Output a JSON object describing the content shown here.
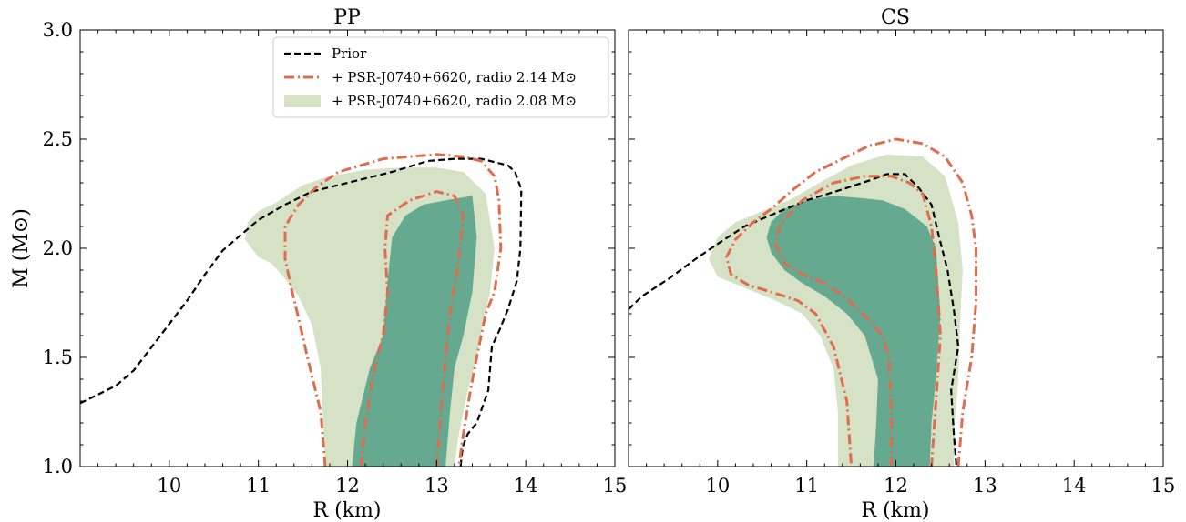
{
  "colors": {
    "prior": "#000000",
    "radio_214": "#e06c4e",
    "radio_208_outer": "#d6e2c6",
    "radio_208_inner": "#64a990"
  },
  "legend": {
    "prior": "Prior",
    "radio_214": "+ PSR-J0740+6620, radio 2.14 M⊙",
    "radio_208": "+ PSR-J0740+6620, radio 2.08 M⊙"
  },
  "chart_data": [
    {
      "type": "line",
      "title": "PP",
      "xlabel": "R (km)",
      "ylabel": "M (M⊙)",
      "xlim": [
        9,
        15
      ],
      "ylim": [
        1.0,
        3.0
      ],
      "xticks": [
        10,
        11,
        12,
        13,
        14,
        15
      ],
      "yticks": [
        1.0,
        1.5,
        2.0,
        2.5,
        3.0
      ],
      "xtick_labels": [
        "10",
        "11",
        "12",
        "13",
        "14",
        "15"
      ],
      "ytick_labels": [
        "1.0",
        "1.5",
        "2.0",
        "2.5",
        "3.0"
      ],
      "series": [
        {
          "name": "Prior",
          "style": "dashed",
          "x": [
            9.0,
            9.4,
            9.6,
            9.9,
            10.2,
            10.4,
            10.6,
            10.8,
            11.0,
            11.3,
            11.6,
            12.0,
            12.5,
            12.9,
            13.2,
            13.5,
            13.7,
            13.8,
            13.88,
            13.95,
            13.94,
            13.9,
            13.8,
            13.7,
            13.62,
            13.58,
            13.45,
            13.35,
            13.3,
            13.28,
            13.27
          ],
          "y": [
            1.29,
            1.37,
            1.44,
            1.6,
            1.76,
            1.88,
            1.99,
            2.06,
            2.13,
            2.2,
            2.26,
            2.3,
            2.35,
            2.4,
            2.41,
            2.41,
            2.39,
            2.38,
            2.35,
            2.27,
            2.0,
            1.85,
            1.72,
            1.62,
            1.55,
            1.35,
            1.2,
            1.15,
            1.1,
            1.05,
            1.0
          ]
        },
        {
          "name": "radio 2.14 outer",
          "style": "dashdot",
          "x": [
            11.75,
            11.7,
            11.55,
            11.45,
            11.38,
            11.3,
            11.3,
            11.45,
            11.65,
            11.9,
            12.15,
            12.4,
            12.7,
            13.0,
            13.3,
            13.5,
            13.65,
            13.7,
            13.72,
            13.65,
            13.55,
            13.5,
            13.45,
            13.38,
            13.3,
            13.25
          ],
          "y": [
            1.0,
            1.25,
            1.5,
            1.68,
            1.8,
            1.95,
            2.1,
            2.2,
            2.28,
            2.35,
            2.38,
            2.41,
            2.42,
            2.43,
            2.42,
            2.4,
            2.33,
            2.22,
            2.0,
            1.8,
            1.7,
            1.6,
            1.5,
            1.35,
            1.15,
            1.0
          ]
        },
        {
          "name": "radio 2.14 inner",
          "style": "dashdot",
          "x": [
            12.15,
            12.2,
            12.3,
            12.4,
            12.45,
            12.42,
            12.45,
            12.7,
            13.0,
            13.2,
            13.3,
            13.25,
            13.15,
            13.1,
            13.05,
            13.0
          ],
          "y": [
            1.0,
            1.2,
            1.45,
            1.6,
            1.8,
            2.0,
            2.15,
            2.22,
            2.26,
            2.24,
            2.15,
            1.95,
            1.7,
            1.5,
            1.25,
            1.0
          ]
        }
      ],
      "bands": [
        {
          "name": "radio 2.08 outer",
          "x": [
            11.75,
            11.72,
            11.7,
            11.6,
            11.45,
            11.3,
            11.15,
            11.0,
            10.85,
            10.88,
            11.0,
            11.2,
            11.5,
            11.8,
            12.2,
            12.6,
            13.0,
            13.3,
            13.55,
            13.65,
            13.6,
            13.5,
            13.45,
            13.35,
            13.25,
            13.2
          ],
          "y": [
            1.0,
            1.25,
            1.45,
            1.65,
            1.78,
            1.86,
            1.93,
            1.96,
            2.04,
            2.12,
            2.17,
            2.21,
            2.29,
            2.33,
            2.36,
            2.37,
            2.37,
            2.35,
            2.25,
            2.0,
            1.8,
            1.62,
            1.5,
            1.35,
            1.15,
            1.0
          ]
        },
        {
          "name": "radio 2.08 inner",
          "x": [
            12.05,
            12.1,
            12.25,
            12.4,
            12.45,
            12.5,
            12.65,
            12.85,
            13.1,
            13.4,
            13.45,
            13.4,
            13.3,
            13.2,
            13.15,
            13.1
          ],
          "y": [
            1.0,
            1.2,
            1.45,
            1.6,
            1.85,
            2.05,
            2.15,
            2.2,
            2.22,
            2.24,
            2.05,
            1.8,
            1.6,
            1.45,
            1.25,
            1.0
          ]
        }
      ]
    },
    {
      "type": "line",
      "title": "CS",
      "xlabel": "R (km)",
      "xlim": [
        9,
        15
      ],
      "ylim": [
        1.0,
        3.0
      ],
      "xticks": [
        10,
        11,
        12,
        13,
        14,
        15
      ],
      "yticks": [
        1.0,
        1.5,
        2.0,
        2.5,
        3.0
      ],
      "xtick_labels": [
        "10",
        "11",
        "12",
        "13",
        "14",
        "15"
      ],
      "series": [
        {
          "name": "Prior",
          "style": "dashed",
          "x": [
            9.0,
            9.15,
            9.45,
            9.75,
            10.0,
            10.3,
            10.7,
            11.0,
            11.4,
            11.7,
            11.9,
            12.1,
            12.25,
            12.4,
            12.48,
            12.58,
            12.65,
            12.7,
            12.62,
            12.65,
            12.68
          ],
          "y": [
            1.72,
            1.78,
            1.86,
            1.95,
            2.02,
            2.1,
            2.17,
            2.22,
            2.27,
            2.31,
            2.34,
            2.34,
            2.28,
            2.2,
            2.06,
            1.9,
            1.72,
            1.55,
            1.35,
            1.15,
            1.0
          ]
        },
        {
          "name": "radio 2.14 outer",
          "style": "dashdot",
          "x": [
            12.7,
            12.75,
            12.85,
            12.9,
            12.9,
            12.85,
            12.75,
            12.55,
            12.3,
            12.0,
            11.7,
            11.4,
            11.1,
            10.85,
            10.6,
            10.4,
            10.2,
            10.1,
            10.15,
            10.35,
            10.6,
            10.9,
            11.1,
            11.3,
            11.45,
            11.5
          ],
          "y": [
            1.0,
            1.25,
            1.5,
            1.75,
            2.0,
            2.15,
            2.3,
            2.42,
            2.48,
            2.5,
            2.47,
            2.41,
            2.35,
            2.27,
            2.18,
            2.12,
            2.04,
            1.96,
            1.88,
            1.83,
            1.8,
            1.76,
            1.7,
            1.55,
            1.3,
            1.0
          ]
        },
        {
          "name": "radio 2.14 inner",
          "style": "dashdot",
          "x": [
            11.95,
            11.95,
            11.92,
            11.85,
            11.7,
            11.45,
            11.2,
            10.95,
            10.75,
            10.65,
            10.7,
            10.95,
            11.3,
            11.65,
            11.95,
            12.15,
            12.3,
            12.4,
            12.45,
            12.5,
            12.45,
            12.4
          ],
          "y": [
            1.0,
            1.25,
            1.5,
            1.6,
            1.67,
            1.77,
            1.84,
            1.88,
            1.93,
            2.02,
            2.11,
            2.22,
            2.3,
            2.33,
            2.33,
            2.3,
            2.25,
            2.1,
            1.9,
            1.6,
            1.3,
            1.0
          ]
        }
      ],
      "bands": [
        {
          "name": "radio 2.08 outer",
          "x": [
            11.35,
            11.35,
            11.3,
            11.15,
            10.95,
            10.65,
            10.3,
            10.0,
            9.9,
            10.0,
            10.2,
            10.5,
            10.8,
            11.1,
            11.5,
            11.9,
            12.3,
            12.55,
            12.7,
            12.75,
            12.72,
            12.7,
            12.66,
            12.65
          ],
          "y": [
            1.0,
            1.25,
            1.45,
            1.6,
            1.7,
            1.76,
            1.82,
            1.87,
            1.95,
            2.05,
            2.12,
            2.17,
            2.22,
            2.29,
            2.38,
            2.43,
            2.42,
            2.33,
            2.12,
            1.9,
            1.65,
            1.4,
            1.2,
            1.0
          ]
        },
        {
          "name": "radio 2.08 inner",
          "x": [
            11.75,
            11.78,
            11.8,
            11.65,
            11.45,
            11.2,
            10.95,
            10.75,
            10.6,
            10.55,
            10.6,
            10.75,
            11.0,
            11.3,
            11.6,
            11.85,
            12.1,
            12.35,
            12.45,
            12.5,
            12.45,
            12.4,
            12.38
          ],
          "y": [
            1.0,
            1.2,
            1.4,
            1.6,
            1.7,
            1.78,
            1.84,
            1.9,
            1.98,
            2.05,
            2.12,
            2.18,
            2.22,
            2.24,
            2.23,
            2.22,
            2.18,
            2.1,
            2.0,
            1.7,
            1.4,
            1.2,
            1.0
          ]
        }
      ]
    }
  ]
}
